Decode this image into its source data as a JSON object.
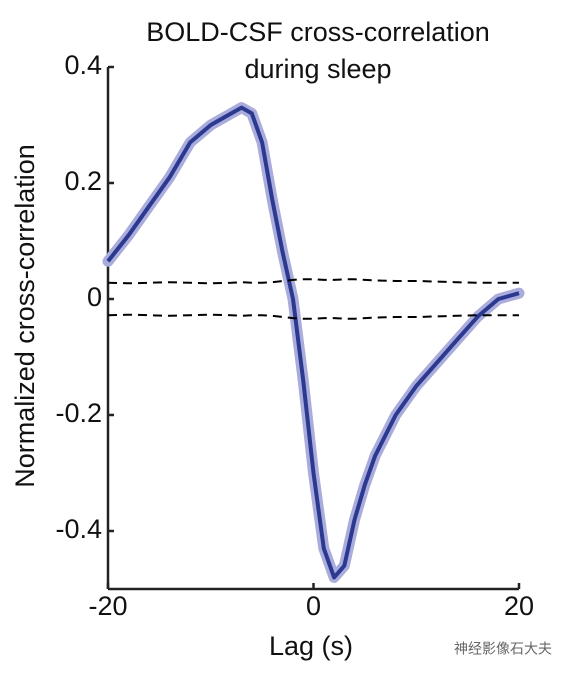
{
  "chart_data": {
    "type": "line",
    "title": [
      "BOLD-CSF cross-correlation",
      "during sleep"
    ],
    "x_label": "Lag (s)",
    "y_label": "Normalized cross-correlation",
    "x": [
      -20,
      -18,
      -16,
      -14,
      -12,
      -10,
      -8,
      -7,
      -6,
      -5,
      -4,
      -3,
      -2,
      -1,
      0,
      1,
      2,
      3,
      4,
      5,
      6,
      8,
      10,
      12,
      14,
      16,
      18,
      20
    ],
    "series": [
      {
        "color": "#2b3990",
        "style": "solid",
        "values": [
          0.065,
          0.11,
          0.16,
          0.21,
          0.27,
          0.3,
          0.32,
          0.33,
          0.32,
          0.27,
          0.17,
          0.08,
          0.0,
          -0.14,
          -0.3,
          -0.43,
          -0.48,
          -0.46,
          -0.38,
          -0.32,
          -0.27,
          -0.2,
          -0.15,
          -0.11,
          -0.07,
          -0.03,
          0.0,
          0.01
        ]
      },
      {
        "color": "#000000",
        "style": "dashed",
        "values": [
          0.028,
          0.027,
          0.028,
          0.029,
          0.028,
          0.027,
          0.028,
          0.029,
          0.028,
          0.028,
          0.029,
          0.031,
          0.033,
          0.034,
          0.034,
          0.033,
          0.033,
          0.034,
          0.034,
          0.033,
          0.032,
          0.031,
          0.031,
          0.03,
          0.029,
          0.028,
          0.028,
          0.028
        ]
      },
      {
        "color": "#000000",
        "style": "dashed",
        "values": [
          -0.028,
          -0.027,
          -0.028,
          -0.029,
          -0.028,
          -0.027,
          -0.028,
          -0.029,
          -0.028,
          -0.028,
          -0.029,
          -0.031,
          -0.033,
          -0.034,
          -0.034,
          -0.033,
          -0.033,
          -0.034,
          -0.034,
          -0.033,
          -0.032,
          -0.031,
          -0.031,
          -0.03,
          -0.029,
          -0.028,
          -0.028,
          -0.028
        ]
      }
    ],
    "band_color": "#aaaddb",
    "xlim": [
      -20,
      20
    ],
    "xticks": [
      -20,
      0,
      20
    ],
    "ylim": [
      -0.5,
      0.4
    ],
    "yticks": [
      -0.4,
      -0.2,
      0,
      0.2,
      0.4
    ],
    "watermark": "神经影像石大夫"
  }
}
